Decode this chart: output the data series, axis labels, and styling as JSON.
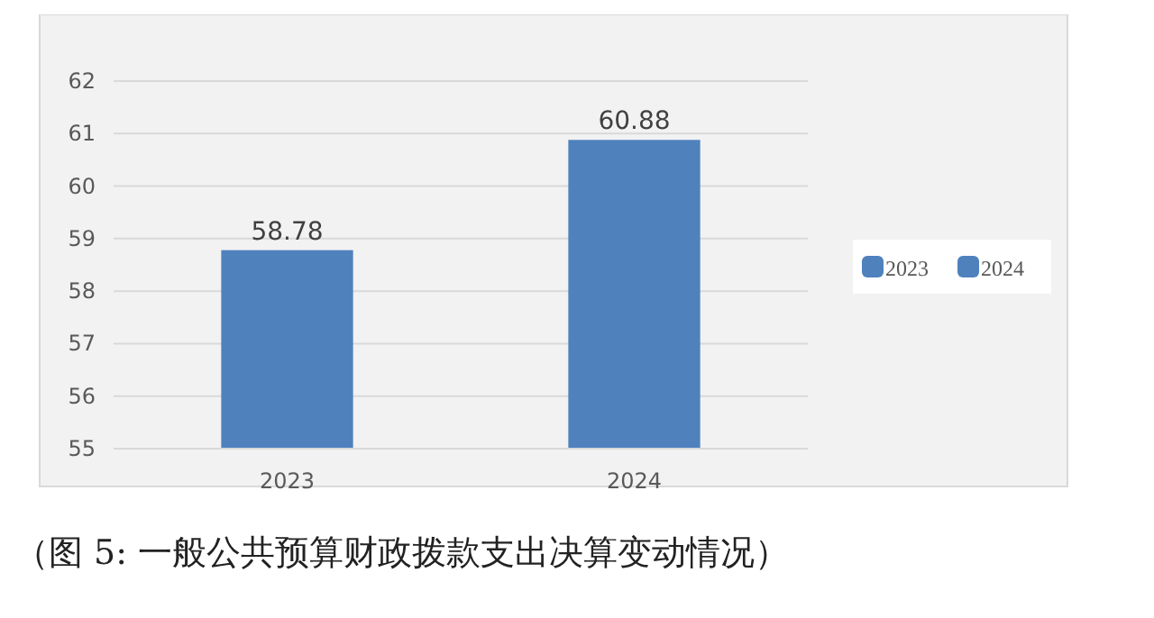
{
  "chart_data": {
    "type": "bar",
    "categories": [
      "2023",
      "2024"
    ],
    "series": [
      {
        "name": "2023",
        "color": "#4f81bd",
        "values": [
          58.78,
          null
        ]
      },
      {
        "name": "2024",
        "color": "#4f81bd",
        "values": [
          null,
          60.88
        ]
      }
    ],
    "ylim": [
      55,
      62
    ],
    "yticks": [
      55,
      56,
      57,
      58,
      59,
      60,
      61,
      62
    ],
    "grid": "y",
    "data_labels": true,
    "legend": "right",
    "annotations": [
      "（图 5:  一般公共预算财政拨款支出决算变动情况）"
    ]
  }
}
